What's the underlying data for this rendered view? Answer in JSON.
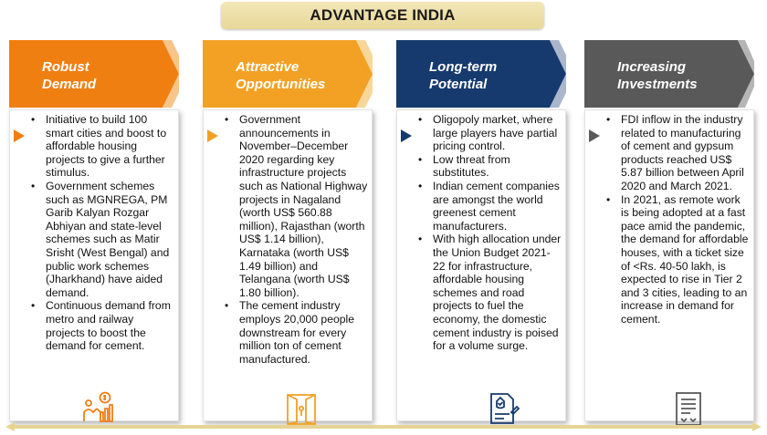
{
  "title": "ADVANTAGE INDIA",
  "columns": [
    {
      "heading_line1": "Robust",
      "heading_line2": "Demand",
      "color": "#f07f12",
      "points": [
        "Initiative to build 100 smart cities and boost to affordable housing projects to give a further stimulus.",
        "Government schemes such as MGNREGA, PM Garib Kalyan Rozgar Abhiyan and state-level schemes such as Matir Srisht (West Bengal) and public work schemes (Jharkhand) have aided demand.",
        "Continuous demand from metro and railway projects to boost the demand for cement."
      ]
    },
    {
      "heading_line1": "Attractive",
      "heading_line2": "Opportunities",
      "color": "#f3a125",
      "points": [
        "Government announcements in November–December 2020 regarding key infrastructure projects such as National Highway projects in Nagaland (worth US$ 560.88 million), Rajasthan (worth US$ 1.14 billion), Karnataka (worth US$ 1.49 billion) and Telangana (worth US$ 1.80 billion).",
        "The cement industry employs 20,000 people downstream for every million ton of cement manufactured."
      ]
    },
    {
      "heading_line1": "Long-term",
      "heading_line2": "Potential",
      "color": "#173a6e",
      "points": [
        "Oligopoly market, where large players have partial pricing control.",
        "Low threat from substitutes.",
        "Indian cement companies are amongst the world greenest cement manufacturers.",
        "With high allocation under the Union Budget 2021-22 for infrastructure, affordable housing schemes and road projects to fuel the economy, the domestic cement industry is poised for a volume surge."
      ]
    },
    {
      "heading_line1": "Increasing",
      "heading_line2": "Investments",
      "color": "#595959",
      "points": [
        "FDI inflow in the industry related to manufacturing of cement and gypsum products reached US$ 5.87 billion between April 2020 and March 2021.",
        "In 2021, as remote work is being adopted at a fast pace amid the pandemic, the demand for affordable houses, with a ticket size of <Rs. 40-50 lakh, is expected to rise in Tier 2 and 3 cities, leading to an increase in demand for cement."
      ]
    }
  ],
  "icons": [
    "money-growth-icon",
    "open-door-icon",
    "approved-document-icon",
    "investment-document-icon"
  ],
  "colors": {
    "title_bg": "#ecdda3",
    "arrow_line": "#e7d493"
  }
}
